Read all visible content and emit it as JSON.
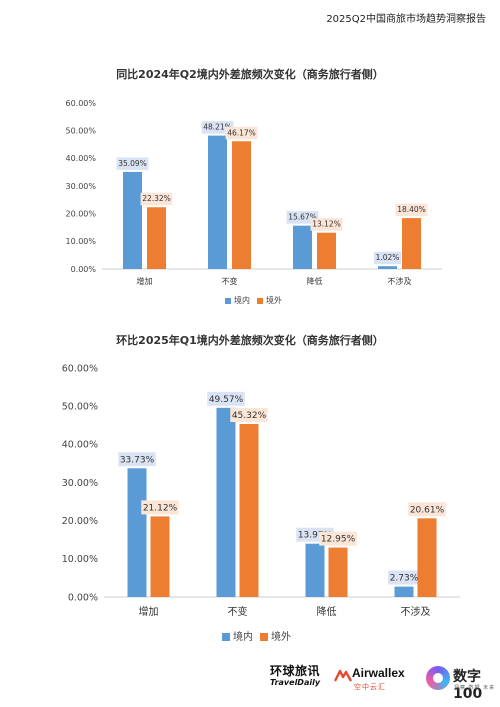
{
  "header": {
    "title": "2025Q2中国商旅市场趋势洞察报告"
  },
  "colors": {
    "domestic": "#5b9bd5",
    "overseas": "#ed7d31",
    "label_bg_domestic": "#dae3f3",
    "label_bg_overseas": "#fbe5d6"
  },
  "chart_data": [
    {
      "type": "bar",
      "title": "同比2024年Q2境内外差旅频次变化（商务旅行者侧）",
      "categories": [
        "增加",
        "不变",
        "降低",
        "不涉及"
      ],
      "series": [
        {
          "name": "境内",
          "values": [
            35.09,
            48.21,
            15.67,
            1.02
          ],
          "labels": [
            "35.09%",
            "48.21%",
            "15.67%",
            "1.02%"
          ]
        },
        {
          "name": "境外",
          "values": [
            22.32,
            46.17,
            13.12,
            18.4
          ],
          "labels": [
            "22.32%",
            "46.17%",
            "13.12%",
            "18.40%"
          ]
        }
      ],
      "yticks": [
        "0.00%",
        "10.00%",
        "20.00%",
        "30.00%",
        "40.00%",
        "50.00%",
        "60.00%"
      ],
      "ylim": [
        0,
        60
      ],
      "legend": "bottom",
      "grid": false
    },
    {
      "type": "bar",
      "title": "环比2025年Q1境内外差旅频次变化（商务旅行者侧）",
      "categories": [
        "增加",
        "不变",
        "降低",
        "不涉及"
      ],
      "series": [
        {
          "name": "境内",
          "values": [
            33.73,
            49.57,
            13.97,
            2.73
          ],
          "labels": [
            "33.73%",
            "49.57%",
            "13.97%",
            "2.73%"
          ]
        },
        {
          "name": "境外",
          "values": [
            21.12,
            45.32,
            12.95,
            20.61
          ],
          "labels": [
            "21.12%",
            "45.32%",
            "12.95%",
            "20.61%"
          ]
        }
      ],
      "yticks": [
        "0.00%",
        "10.00%",
        "20.00%",
        "30.00%",
        "40.00%",
        "50.00%",
        "60.00%"
      ],
      "ylim": [
        0,
        60
      ],
      "legend": "bottom",
      "grid": false
    }
  ],
  "footer": {
    "traveldaily_cn": "环球旅讯",
    "traveldaily_en": "TravelDaily",
    "airwallex_en": "Airwallex",
    "airwallex_cn": "空中云汇",
    "shuzi_text": "数字100",
    "shuzi_sub": "洞察  数据  未来"
  }
}
